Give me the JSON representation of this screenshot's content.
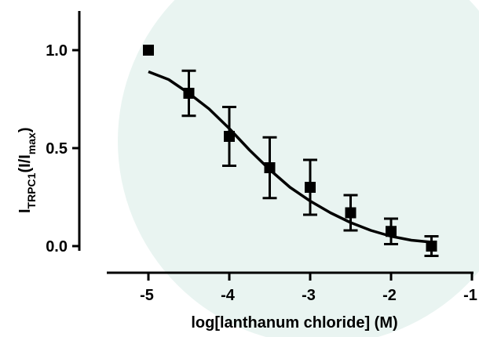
{
  "chart_data": {
    "type": "scatter",
    "title": "",
    "ylabel": {
      "main": "I",
      "sub": "TRPC1",
      "paren_open": "(I/I",
      "paren_sub": "max",
      "paren_close": ")"
    },
    "xlabel": "log[lanthanum chloride] (M)",
    "x_ticks": [
      -5,
      -4,
      -3,
      -2,
      -1
    ],
    "x_tick_labels": [
      "-5",
      "-4",
      "-3",
      "-2",
      "-1"
    ],
    "y_ticks": [
      0.0,
      0.5,
      1.0
    ],
    "y_tick_labels": [
      "0.0",
      "0.5",
      "1.0"
    ],
    "xlim": [
      -5.2,
      -1
    ],
    "ylim": [
      -0.05,
      1.2
    ],
    "grid": false,
    "series": [
      {
        "x": [
          -5,
          -4.5,
          -4,
          -3.5,
          -3,
          -2.5,
          -2,
          -1.5
        ],
        "y": [
          1.0,
          0.78,
          0.56,
          0.4,
          0.3,
          0.17,
          0.075,
          0.0
        ],
        "error": [
          0,
          0.115,
          0.15,
          0.155,
          0.14,
          0.09,
          0.065,
          0.05
        ]
      }
    ],
    "fit": {
      "type": "sigmoidal dose-response",
      "curve_x": [
        -5,
        -4.75,
        -4.5,
        -4.25,
        -4,
        -3.75,
        -3.5,
        -3.25,
        -3,
        -2.75,
        -2.5,
        -2.25,
        -2,
        -1.75,
        -1.5
      ],
      "curve_y": [
        0.89,
        0.85,
        0.78,
        0.7,
        0.6,
        0.49,
        0.39,
        0.3,
        0.23,
        0.17,
        0.12,
        0.08,
        0.05,
        0.03,
        0.02
      ]
    },
    "colors": {
      "marker": "#000000",
      "line": "#000000",
      "watermark": "#e6f3f0"
    }
  }
}
